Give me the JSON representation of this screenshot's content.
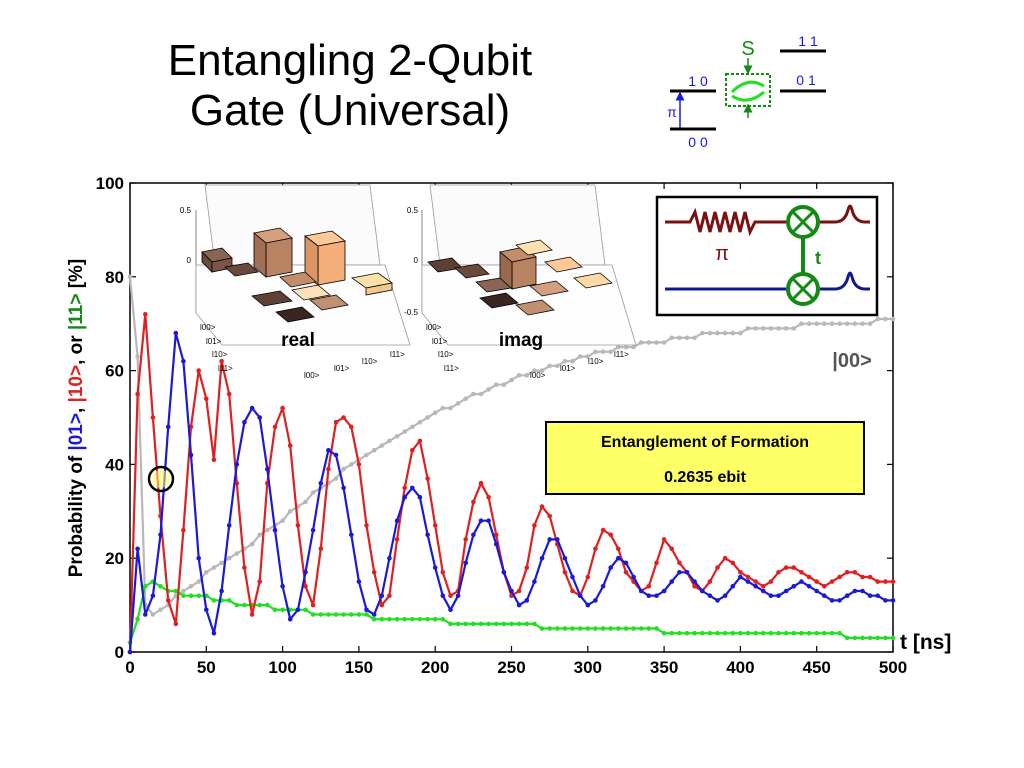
{
  "slide": {
    "title_line1": "Entangling 2-Qubit",
    "title_line2": "Gate (Universal)"
  },
  "level_diagram": {
    "S": "S",
    "level_11": "1 1",
    "level_10": "1 0",
    "level_01": "0 1",
    "level_00": "0 0",
    "pi": "π"
  },
  "circuit": {
    "pi": "π",
    "t": "t"
  },
  "inset_real": {
    "label": "real",
    "z_ticks": [
      "0.5",
      "0"
    ],
    "row_labels": [
      "l00>",
      "l01>",
      "l10>",
      "l11>"
    ],
    "col_labels": [
      "l00>",
      "l01>",
      "l10>",
      "l11>"
    ]
  },
  "inset_imag": {
    "label": "imag",
    "z_ticks": [
      "0.5",
      "0",
      "-0.5"
    ],
    "row_labels": [
      "l00>",
      "l01>",
      "l10>",
      "l11>"
    ],
    "col_labels": [
      "l00>",
      "l01>",
      "l10>",
      "l11>"
    ]
  },
  "callout": {
    "line1": "Entanglement of Formation",
    "line2": "0.2635 ebit"
  },
  "colors": {
    "p01": "#1a1ad6",
    "p10": "#e02020",
    "p11": "#20e020",
    "p00": "#b8b8b8",
    "callout_bg": "#ffff66",
    "circuit_top": "#7a1010",
    "circuit_bottom": "#101a8a",
    "circuit_gate": "#138a13"
  },
  "chart_data": {
    "type": "line",
    "xlabel": "t [ns]",
    "ylabel_parts": [
      {
        "text": "Probability of ",
        "color": "#000000"
      },
      {
        "text": "|01>",
        "color": "#1a1ad6"
      },
      {
        "text": ", ",
        "color": "#000000"
      },
      {
        "text": "|10>",
        "color": "#e02020"
      },
      {
        "text": ", or ",
        "color": "#000000"
      },
      {
        "text": "|11>",
        "color": "#138a13"
      },
      {
        "text": " [%]",
        "color": "#000000"
      }
    ],
    "xlim": [
      0,
      500
    ],
    "ylim": [
      0,
      100
    ],
    "xticks": [
      0,
      50,
      100,
      150,
      200,
      250,
      300,
      350,
      400,
      450,
      500
    ],
    "yticks": [
      0,
      20,
      40,
      60,
      80,
      100
    ],
    "series_label_00": "|00>",
    "x": [
      0,
      5,
      10,
      15,
      20,
      25,
      30,
      35,
      40,
      45,
      50,
      55,
      60,
      65,
      70,
      75,
      80,
      85,
      90,
      95,
      100,
      105,
      110,
      115,
      120,
      125,
      130,
      135,
      140,
      145,
      150,
      155,
      160,
      165,
      170,
      175,
      180,
      185,
      190,
      195,
      200,
      205,
      210,
      215,
      220,
      225,
      230,
      235,
      240,
      245,
      250,
      255,
      260,
      265,
      270,
      275,
      280,
      285,
      290,
      295,
      300,
      305,
      310,
      315,
      320,
      325,
      330,
      335,
      340,
      345,
      350,
      355,
      360,
      365,
      370,
      375,
      380,
      385,
      390,
      395,
      400,
      405,
      410,
      415,
      420,
      425,
      430,
      435,
      440,
      445,
      450,
      455,
      460,
      465,
      470,
      475,
      480,
      485,
      490,
      495,
      500
    ],
    "series": [
      {
        "key": "p10",
        "values": [
          0,
          55,
          72,
          50,
          29,
          11,
          6,
          26,
          48,
          60,
          54,
          41,
          62,
          55,
          36,
          18,
          8,
          15,
          36,
          48,
          52,
          44,
          27,
          14,
          10,
          22,
          39,
          49,
          50,
          48,
          40,
          27,
          17,
          10,
          12,
          24,
          35,
          43,
          45,
          37,
          27,
          17,
          12,
          13,
          24,
          32,
          36,
          33,
          25,
          17,
          12,
          13,
          18,
          27,
          31,
          29,
          23,
          17,
          13,
          12,
          16,
          22,
          26,
          25,
          22,
          17,
          15,
          13,
          14,
          19,
          24,
          22,
          19,
          17,
          14,
          13,
          15,
          18,
          20,
          19,
          17,
          16,
          15,
          14,
          15,
          17,
          18,
          18,
          17,
          16,
          15,
          14,
          15,
          16,
          17,
          17,
          16,
          16,
          15,
          15,
          15
        ]
      },
      {
        "key": "p01",
        "values": [
          0,
          22,
          8,
          12,
          25,
          48,
          68,
          62,
          42,
          20,
          9,
          4,
          13,
          27,
          40,
          49,
          52,
          50,
          39,
          26,
          14,
          7,
          9,
          17,
          26,
          36,
          43,
          42,
          35,
          25,
          15,
          9,
          8,
          12,
          20,
          28,
          33,
          35,
          33,
          25,
          18,
          12,
          9,
          12,
          19,
          25,
          28,
          28,
          23,
          17,
          13,
          10,
          11,
          15,
          20,
          24,
          24,
          20,
          16,
          12,
          10,
          11,
          14,
          18,
          20,
          19,
          16,
          13,
          12,
          12,
          13,
          15,
          17,
          17,
          15,
          13,
          12,
          11,
          12,
          14,
          16,
          15,
          14,
          13,
          12,
          12,
          13,
          14,
          15,
          14,
          13,
          12,
          11,
          11,
          12,
          13,
          13,
          12,
          12,
          11,
          11
        ]
      },
      {
        "key": "p11",
        "values": [
          2,
          7,
          14,
          15,
          14,
          13,
          13,
          12,
          12,
          12,
          12,
          11,
          11,
          11,
          10,
          10,
          10,
          10,
          10,
          9,
          9,
          9,
          9,
          9,
          8,
          8,
          8,
          8,
          8,
          8,
          8,
          8,
          7,
          7,
          7,
          7,
          7,
          7,
          7,
          7,
          7,
          7,
          6,
          6,
          6,
          6,
          6,
          6,
          6,
          6,
          6,
          6,
          6,
          6,
          5,
          5,
          5,
          5,
          5,
          5,
          5,
          5,
          5,
          5,
          5,
          5,
          5,
          5,
          5,
          5,
          4,
          4,
          4,
          4,
          4,
          4,
          4,
          4,
          4,
          4,
          4,
          4,
          4,
          4,
          4,
          4,
          4,
          4,
          4,
          4,
          4,
          4,
          4,
          4,
          3,
          3,
          3,
          3,
          3,
          3,
          3
        ]
      },
      {
        "key": "p00",
        "values": [
          80,
          63,
          10,
          8,
          9,
          10,
          12,
          13,
          14,
          15,
          17,
          18,
          19,
          20,
          21,
          22,
          23,
          25,
          26,
          27,
          28,
          30,
          31,
          32,
          34,
          35,
          36,
          37,
          39,
          40,
          41,
          42,
          43,
          44,
          45,
          46,
          47,
          48,
          49,
          50,
          51,
          52,
          52,
          53,
          54,
          55,
          55,
          56,
          57,
          57,
          58,
          59,
          59,
          60,
          60,
          61,
          61,
          62,
          62,
          63,
          63,
          64,
          64,
          64,
          65,
          65,
          65,
          66,
          66,
          66,
          66,
          67,
          67,
          67,
          67,
          68,
          68,
          68,
          68,
          68,
          68,
          69,
          69,
          69,
          69,
          69,
          69,
          69,
          70,
          70,
          70,
          70,
          70,
          70,
          70,
          70,
          70,
          70,
          71,
          71,
          71
        ]
      }
    ]
  }
}
